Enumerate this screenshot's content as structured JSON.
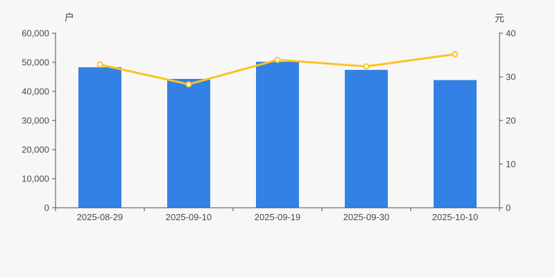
{
  "chart": {
    "background": "#f7f7f7",
    "text_color": "#4a4a4a",
    "axis_color": "#4d4d4d"
  },
  "chart_data": {
    "type": "bar",
    "subtype": "bar+line combo, dual y-axis",
    "title": "",
    "categories": [
      "2025-08-29",
      "2025-09-10",
      "2025-09-19",
      "2025-09-30",
      "2025-10-10"
    ],
    "series": [
      {
        "name": "bar-series",
        "type": "bar",
        "yaxis": "left",
        "unit": "户",
        "color": "#3381e4",
        "values": [
          48300,
          44300,
          50200,
          47400,
          43900
        ]
      },
      {
        "name": "line-series",
        "type": "line",
        "yaxis": "right",
        "unit": "元",
        "color": "#fbc324",
        "marker": "open-circle",
        "values": [
          32.8,
          28.3,
          33.9,
          32.4,
          35.2
        ]
      }
    ],
    "left_axis": {
      "name": "户",
      "min": 0,
      "max": 60000,
      "step": 10000,
      "tick_labels": [
        "0",
        "10,000",
        "20,000",
        "30,000",
        "40,000",
        "50,000",
        "60,000"
      ]
    },
    "right_axis": {
      "name": "元",
      "min": 0,
      "max": 40,
      "step": 10,
      "tick_labels": [
        "0",
        "10",
        "20",
        "30",
        "40"
      ]
    },
    "grid": false,
    "legend": false
  }
}
